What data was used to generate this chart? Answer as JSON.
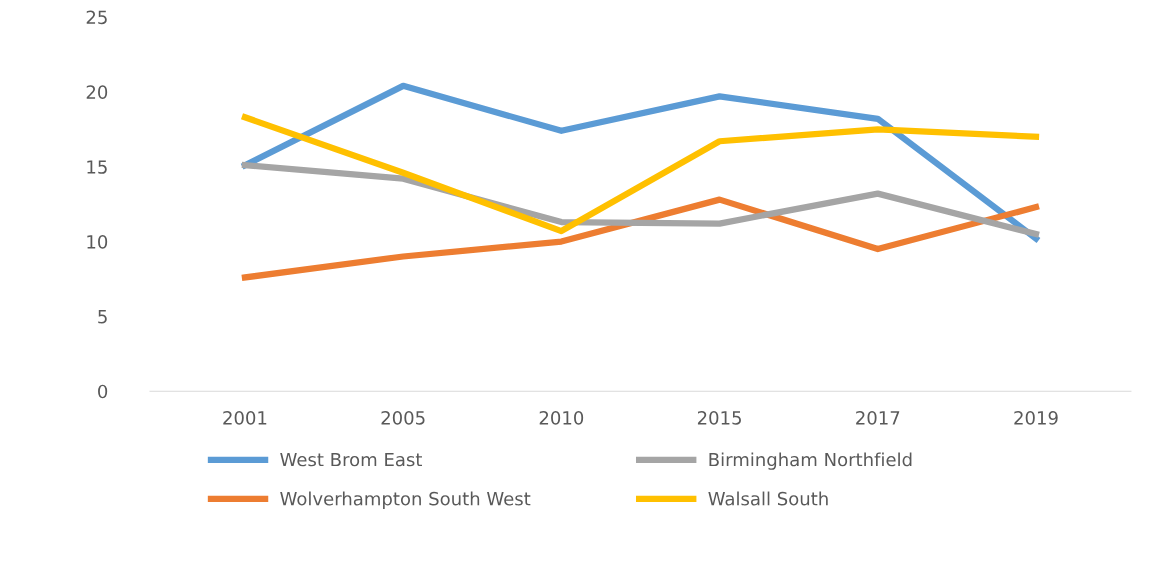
{
  "chart_data": {
    "type": "line",
    "categories": [
      "2001",
      "2005",
      "2010",
      "2015",
      "2017",
      "2019"
    ],
    "series": [
      {
        "name": "West Brom East",
        "color": "#5b9bd5",
        "values": [
          15.1,
          20.4,
          17.4,
          19.7,
          18.2,
          10.2
        ]
      },
      {
        "name": "Wolverhampton South West",
        "color": "#ed7d31",
        "values": [
          7.6,
          9.0,
          10.0,
          12.8,
          9.5,
          12.3
        ]
      },
      {
        "name": "Birmingham Northfield",
        "color": "#a5a5a5",
        "values": [
          15.1,
          14.2,
          11.3,
          11.2,
          13.2,
          10.5
        ]
      },
      {
        "name": "Walsall South",
        "color": "#ffc000",
        "values": [
          18.3,
          14.6,
          10.7,
          16.7,
          17.5,
          17.0
        ]
      }
    ],
    "ylim": [
      0,
      25
    ],
    "yticks": [
      0,
      5,
      10,
      15,
      20,
      25
    ],
    "grid": false,
    "legend": "bottom",
    "marker": "none",
    "line_style": "solid"
  }
}
